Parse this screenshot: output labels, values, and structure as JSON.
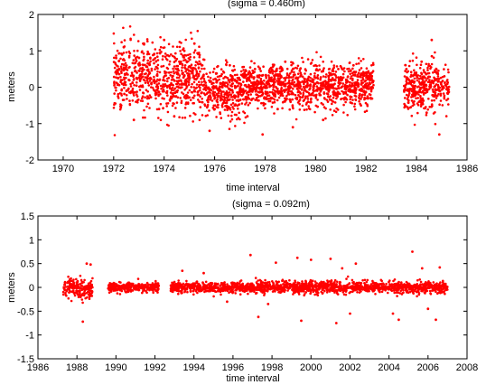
{
  "chart_data": [
    {
      "type": "scatter",
      "title": "(sigma = 0.460m)",
      "xlabel": "time interval",
      "ylabel": "meters",
      "xlim": [
        1969,
        1986
      ],
      "ylim": [
        -2,
        2
      ],
      "xticks": [
        "1970",
        "1972",
        "1974",
        "1976",
        "1978",
        "1980",
        "1982",
        "1984",
        "1986"
      ],
      "yticks": [
        "-2",
        "-1",
        "0",
        "1",
        "2"
      ],
      "grid": true,
      "marker_color": "#ff0000",
      "segments": [
        {
          "start": 1972.0,
          "end": 1975.6,
          "center": 0.25,
          "sigma": 0.45
        },
        {
          "start": 1975.6,
          "end": 1977.0,
          "center": -0.15,
          "sigma": 0.35
        },
        {
          "start": 1977.0,
          "end": 1982.3,
          "center": 0.02,
          "sigma": 0.3
        },
        {
          "start": 1983.5,
          "end": 1985.3,
          "center": 0.05,
          "sigma": 0.32
        }
      ],
      "series": [
        {
          "x": [
            1972.1,
            1972.3,
            1972.4,
            1972.6,
            1972.8,
            1973.0,
            1973.2,
            1973.4,
            1973.6,
            1973.8,
            1974.0,
            1974.2,
            1974.4,
            1974.6,
            1974.8,
            1975.0,
            1975.2,
            1975.4,
            1975.8,
            1976.0,
            1976.2,
            1976.4,
            1976.6,
            1976.8,
            1977.0,
            1977.3,
            1977.6,
            1977.9,
            1978.2,
            1978.5,
            1978.8,
            1979.1,
            1979.4,
            1979.7,
            1980.0,
            1980.3,
            1980.6,
            1980.9,
            1981.2,
            1981.5,
            1981.8,
            1982.1,
            1983.6,
            1983.9,
            1984.2,
            1984.4,
            1984.6,
            1984.9,
            1985.1
          ],
          "y": [
            0.8,
            -0.5,
            1.1,
            0.2,
            -0.9,
            0.6,
            1.2,
            -0.3,
            0.9,
            -0.6,
            1.3,
            0.4,
            -0.8,
            0.7,
            1.0,
            0.3,
            1.2,
            -0.4,
            -1.2,
            -0.6,
            0.3,
            -0.2,
            0.6,
            -0.5,
            0.2,
            -0.8,
            0.5,
            -1.3,
            0.4,
            -0.6,
            0.7,
            -1.1,
            0.3,
            -0.4,
            0.6,
            -0.9,
            0.2,
            0.5,
            -0.3,
            0.6,
            -0.5,
            0.4,
            0.5,
            -0.2,
            0.7,
            -0.7,
            1.3,
            -1.3,
            0.3
          ]
        }
      ]
    },
    {
      "type": "scatter",
      "title": "(sigma = 0.092m)",
      "xlabel": "time interval",
      "ylabel": "meters",
      "xlim": [
        1986,
        2008
      ],
      "ylim": [
        -1.5,
        1.5
      ],
      "xticks": [
        "1986",
        "1988",
        "1990",
        "1992",
        "1994",
        "1996",
        "1998",
        "2000",
        "2002",
        "2004",
        "2006",
        "2008"
      ],
      "yticks": [
        "-1.5",
        "-1",
        "-0.5",
        "0",
        "0.5",
        "1",
        "1.5"
      ],
      "grid": true,
      "marker_color": "#ff0000",
      "segments": [
        {
          "start": 1987.3,
          "end": 1988.8,
          "center": -0.02,
          "sigma": 0.1
        },
        {
          "start": 1989.6,
          "end": 1992.2,
          "center": 0.0,
          "sigma": 0.05
        },
        {
          "start": 1992.8,
          "end": 2007.0,
          "center": 0.0,
          "sigma": 0.06
        }
      ],
      "series": [
        {
          "x": [
            1988.5,
            1988.7,
            1988.3,
            1996.9,
            1997.3,
            1997.8,
            1998.2,
            1999.3,
            1999.5,
            2000.0,
            2001.0,
            2001.3,
            2001.6,
            2002.0,
            2002.3,
            2004.2,
            2004.5,
            2005.2,
            2005.7,
            2006.0,
            2006.4,
            2006.6,
            1994.5,
            1995.7,
            1993.4
          ],
          "y": [
            0.5,
            0.48,
            -0.72,
            0.68,
            -0.62,
            -0.35,
            0.52,
            0.62,
            -0.7,
            0.58,
            0.6,
            -0.75,
            0.4,
            -0.55,
            0.5,
            -0.55,
            -0.68,
            0.75,
            0.4,
            -0.45,
            -0.68,
            0.42,
            0.3,
            -0.3,
            0.35
          ]
        }
      ]
    }
  ]
}
